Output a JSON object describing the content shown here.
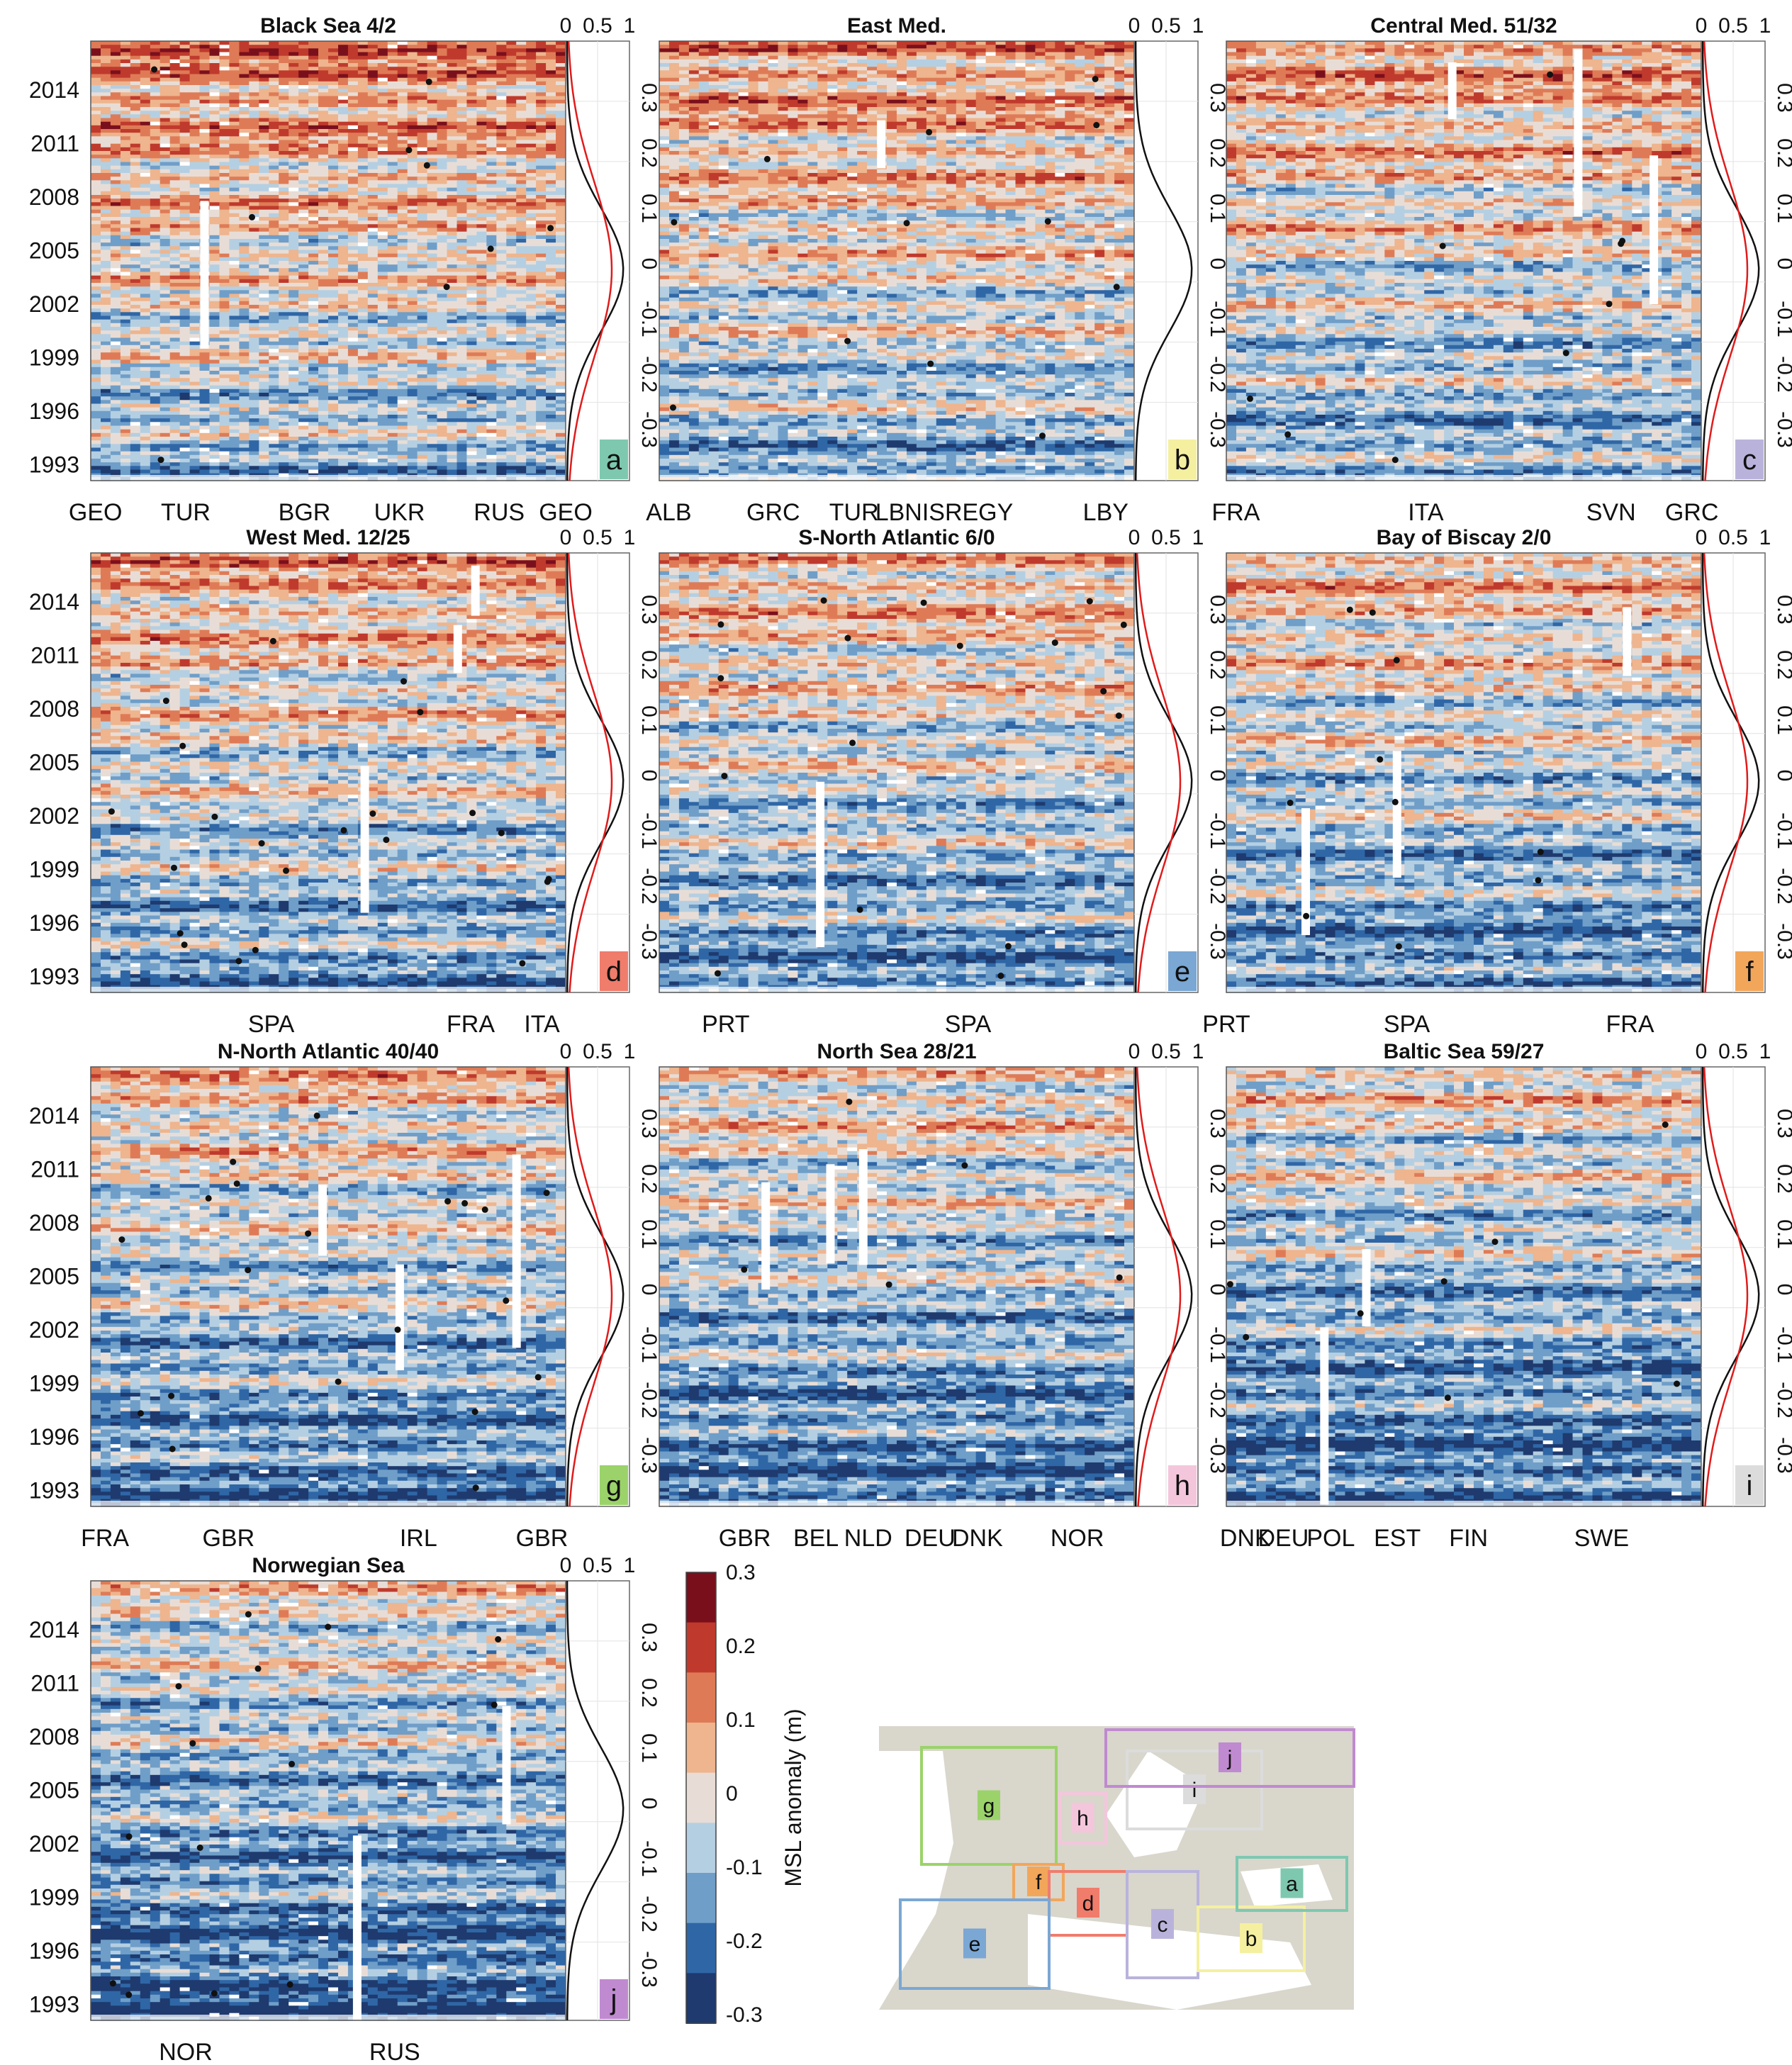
{
  "chart_data": {
    "type": "heatmap",
    "colorbar": {
      "label": "MSL anomaly (m)",
      "ticks": [
        "0.3",
        "0.2",
        "0.1",
        "0",
        "-0.1",
        "-0.2",
        "-0.3"
      ],
      "range": [
        -0.3,
        0.3
      ],
      "colors": [
        "#1e3a6e",
        "#2f66a6",
        "#6f9ec8",
        "#b5cfe2",
        "#e8ddd6",
        "#eeb58e",
        "#de7b56",
        "#bf3a2c",
        "#7a0f1c"
      ]
    },
    "year_ticks": [
      "2014",
      "2011",
      "2008",
      "2005",
      "2002",
      "1999",
      "1996",
      "1993"
    ],
    "dist_top_ticks": [
      "0",
      "0.5",
      "1"
    ],
    "dist_ticks": [
      "0.3",
      "0.2",
      "0.1",
      "0",
      "-0.1",
      "-0.2",
      "-0.3"
    ],
    "panels": [
      {
        "id": "a",
        "title": "Black Sea 4/2",
        "letter": "a",
        "letter_color": "#7ec8b0",
        "xlabels": [
          "GEO",
          "TUR",
          "BGR",
          "UKR",
          "RUS",
          "GEO"
        ],
        "has_red": true
      },
      {
        "id": "b",
        "title": "East Med.",
        "letter": "b",
        "letter_color": "#f4f0a0",
        "xlabels": [
          "ALB",
          "GRC",
          "TUR",
          "LBNISREGY",
          "LBY"
        ],
        "has_red": false
      },
      {
        "id": "c",
        "title": "Central Med. 51/32",
        "letter": "c",
        "letter_color": "#b9b3dc",
        "xlabels": [
          "FRA",
          "ITA",
          "SVN",
          "GRC"
        ],
        "has_red": true
      },
      {
        "id": "d",
        "title": "West Med. 12/25",
        "letter": "d",
        "letter_color": "#f07c6c",
        "xlabels": [
          "SPA",
          "FRA",
          "ITA"
        ],
        "has_red": true
      },
      {
        "id": "e",
        "title": "S-North Atlantic 6/0",
        "letter": "e",
        "letter_color": "#7aa7d4",
        "xlabels": [
          "PRT",
          "SPA"
        ],
        "has_red": true
      },
      {
        "id": "f",
        "title": "Bay of Biscay 2/0",
        "letter": "f",
        "letter_color": "#f2a65a",
        "xlabels": [
          "PRT",
          "SPA",
          "FRA"
        ],
        "has_red": true
      },
      {
        "id": "g",
        "title": "N-North Atlantic 40/40",
        "letter": "g",
        "letter_color": "#9bd36a",
        "xlabels": [
          "FRA",
          "GBR",
          "IRL",
          "GBR"
        ],
        "has_red": true
      },
      {
        "id": "h",
        "title": "North Sea 28/21",
        "letter": "h",
        "letter_color": "#f4c6dc",
        "xlabels": [
          "GBR",
          "BEL",
          "NLD",
          "DEU",
          "DNK",
          "NOR"
        ],
        "has_red": true
      },
      {
        "id": "i",
        "title": "Baltic Sea 59/27",
        "letter": "i",
        "letter_color": "#dcdcdc",
        "xlabels": [
          "DNK",
          "DEU",
          "POL",
          "EST",
          "FIN",
          "SWE"
        ],
        "has_red": true
      },
      {
        "id": "j",
        "title": "Norwegian Sea",
        "letter": "j",
        "letter_color": "#c08ad0",
        "xlabels": [
          "NOR",
          "RUS"
        ],
        "has_red": false
      }
    ],
    "map": {
      "land_color": "#d9d6cc",
      "boxes": [
        {
          "letter": "g",
          "color": "#9bd36a"
        },
        {
          "letter": "h",
          "color": "#f4c6dc"
        },
        {
          "letter": "i",
          "color": "#dcdcdc"
        },
        {
          "letter": "j",
          "color": "#c08ad0"
        },
        {
          "letter": "f",
          "color": "#f2a65a"
        },
        {
          "letter": "d",
          "color": "#f07c6c"
        },
        {
          "letter": "e",
          "color": "#7aa7d4"
        },
        {
          "letter": "c",
          "color": "#b9b3dc"
        },
        {
          "letter": "b",
          "color": "#f4f0a0"
        },
        {
          "letter": "a",
          "color": "#7ec8b0"
        }
      ]
    }
  }
}
